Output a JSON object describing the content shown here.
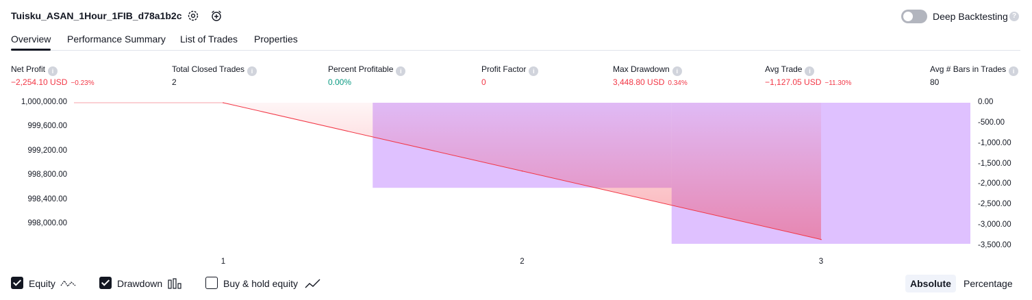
{
  "header": {
    "strategy_name": "Tuisku_ASAN_1Hour_1FIB_d78a1b2c",
    "settings_icon": "gear-icon",
    "add_alert_icon": "alarm-add-icon",
    "deep_backtesting_label": "Deep Backtesting",
    "deep_backtesting_enabled": false,
    "help_glyph": "?"
  },
  "tabs": [
    {
      "label": "Overview",
      "active": true
    },
    {
      "label": "Performance Summary",
      "active": false
    },
    {
      "label": "List of Trades",
      "active": false
    },
    {
      "label": "Properties",
      "active": false
    }
  ],
  "info_glyph": "i",
  "metrics": [
    {
      "label": "Net Profit",
      "value": "−2,254.10 USD",
      "sub": "−0.23%",
      "tone": "neg"
    },
    {
      "label": "Total Closed Trades",
      "value": "2",
      "sub": "",
      "tone": "neutral"
    },
    {
      "label": "Percent Profitable",
      "value": "0.00%",
      "sub": "",
      "tone": "pos"
    },
    {
      "label": "Profit Factor",
      "value": "0",
      "sub": "",
      "tone": "neg"
    },
    {
      "label": "Max Drawdown",
      "value": "3,448.80 USD",
      "sub": "0.34%",
      "tone": "neg"
    },
    {
      "label": "Avg Trade",
      "value": "−1,127.05 USD",
      "sub": "−11.30%",
      "tone": "neg"
    },
    {
      "label": "Avg # Bars in Trades",
      "value": "80",
      "sub": "",
      "tone": "neutral"
    }
  ],
  "chart_data": {
    "type": "line",
    "x_ticks": [
      "1",
      "2",
      "3"
    ],
    "equity": {
      "name": "Equity",
      "x": [
        1,
        2,
        3
      ],
      "y": [
        1000000.0,
        998874.0,
        997746.0
      ],
      "color": "#f23645"
    },
    "drawdown": {
      "name": "Drawdown",
      "type": "bar",
      "x_ranges": [
        [
          1.5,
          2.5
        ],
        [
          2.5,
          3.5
        ]
      ],
      "values": [
        -2080.0,
        -3448.8
      ],
      "color": "#d1a6ff"
    },
    "left_axis": {
      "ticks": [
        "1,000,000.00",
        "999,600.00",
        "999,200.00",
        "998,800.00",
        "998,400.00",
        "998,000.00"
      ],
      "range": [
        997640.0,
        1000000.0
      ]
    },
    "right_axis": {
      "ticks": [
        "0.00",
        "-500.00",
        "-1,000.00",
        "-1,500.00",
        "-2,000.00",
        "-2,500.00",
        "-3,000.00",
        "-3,500.00"
      ],
      "range": [
        -3500.0,
        0.0
      ]
    },
    "grid": false,
    "legend": "bottom-left"
  },
  "footer": {
    "options": [
      {
        "label": "Equity",
        "checked": true,
        "icon": "equity-line-icon"
      },
      {
        "label": "Drawdown",
        "checked": true,
        "icon": "drawdown-bars-icon"
      },
      {
        "label": "Buy & hold equity",
        "checked": false,
        "icon": "buy-hold-line-icon"
      }
    ],
    "modes": [
      {
        "label": "Absolute",
        "active": true
      },
      {
        "label": "Percentage",
        "active": false
      }
    ]
  }
}
